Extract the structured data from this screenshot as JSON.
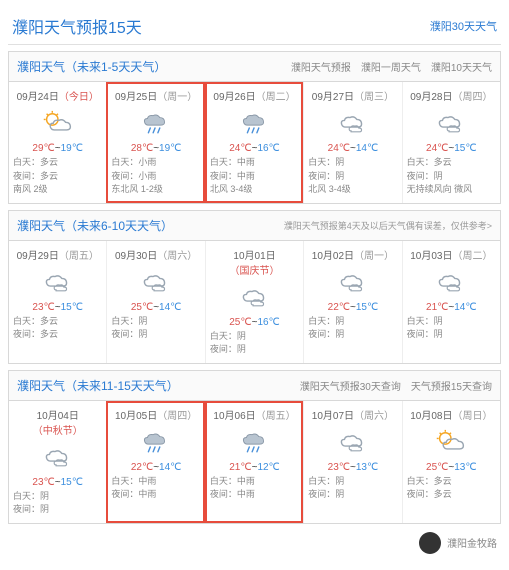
{
  "header": {
    "title": "濮阳天气预报15天",
    "link30": "濮阳30天天气"
  },
  "colors": {
    "hi": "#d9534f",
    "lo": "#3b8ede",
    "highlight": "#e74c3c",
    "link": "#2a7ad2"
  },
  "footer": {
    "text": "濮阳金牧路"
  },
  "sections": [
    {
      "title": "濮阳天气（未来1-5天天气）",
      "links": [
        "濮阳天气预报",
        "濮阳一周天气",
        "濮阳10天天气"
      ],
      "note": "",
      "days": [
        {
          "date": "09月24日",
          "dow": "（今日）",
          "today": true,
          "icon": "partly",
          "hi": "29℃",
          "lo": "19℃",
          "day": "白天：多云",
          "night": "夜间：多云",
          "wind": "南风 2级",
          "highlight": false
        },
        {
          "date": "09月25日",
          "dow": "（周一）",
          "icon": "rain",
          "hi": "28℃",
          "lo": "19℃",
          "day": "白天：小雨",
          "night": "夜间：小雨",
          "wind": "东北风 1-2级",
          "highlight": true
        },
        {
          "date": "09月26日",
          "dow": "（周二）",
          "icon": "rain",
          "hi": "24℃",
          "lo": "16℃",
          "day": "白天：中雨",
          "night": "夜间：中雨",
          "wind": "北风 3-4级",
          "highlight": true
        },
        {
          "date": "09月27日",
          "dow": "（周三）",
          "icon": "cloudy",
          "hi": "24℃",
          "lo": "14℃",
          "day": "白天：阴",
          "night": "夜间：阴",
          "wind": "北风 3-4级",
          "highlight": false
        },
        {
          "date": "09月28日",
          "dow": "（周四）",
          "icon": "cloudy",
          "hi": "24℃",
          "lo": "15℃",
          "day": "白天：多云",
          "night": "夜间：阴",
          "wind": "无持续风向 微风",
          "highlight": false
        }
      ]
    },
    {
      "title": "濮阳天气（未来6-10天天气）",
      "links": [],
      "note": "濮阳天气预报第4天及以后天气偶有误差，仅供参考>",
      "days": [
        {
          "date": "09月29日",
          "dow": "（周五）",
          "icon": "cloudy",
          "hi": "23℃",
          "lo": "15℃",
          "day": "白天：多云",
          "night": "夜间：多云",
          "wind": "",
          "highlight": false
        },
        {
          "date": "09月30日",
          "dow": "（周六）",
          "icon": "cloudy",
          "hi": "25℃",
          "lo": "14℃",
          "day": "白天：阴",
          "night": "夜间：阴",
          "wind": "",
          "highlight": false
        },
        {
          "date": "10月01日",
          "dow": "（国庆节）",
          "holiday": true,
          "icon": "cloudy",
          "hi": "25℃",
          "lo": "16℃",
          "day": "白天：阴",
          "night": "夜间：阴",
          "wind": "",
          "highlight": false
        },
        {
          "date": "10月02日",
          "dow": "（周一）",
          "icon": "cloudy",
          "hi": "22℃",
          "lo": "15℃",
          "day": "白天：阴",
          "night": "夜间：阴",
          "wind": "",
          "highlight": false
        },
        {
          "date": "10月03日",
          "dow": "（周二）",
          "icon": "cloudy",
          "hi": "21℃",
          "lo": "14℃",
          "day": "白天：阴",
          "night": "夜间：阴",
          "wind": "",
          "highlight": false
        }
      ]
    },
    {
      "title": "濮阳天气（未来11-15天天气）",
      "links": [
        "濮阳天气预报30天查询",
        "天气预报15天查询"
      ],
      "note": "",
      "days": [
        {
          "date": "10月04日",
          "dow": "（中秋节）",
          "holiday": true,
          "icon": "cloudy",
          "hi": "23℃",
          "lo": "15℃",
          "day": "白天：阴",
          "night": "夜间：阴",
          "wind": "",
          "highlight": false
        },
        {
          "date": "10月05日",
          "dow": "（周四）",
          "icon": "rain",
          "hi": "22℃",
          "lo": "14℃",
          "day": "白天：中雨",
          "night": "夜间：中雨",
          "wind": "",
          "highlight": true
        },
        {
          "date": "10月06日",
          "dow": "（周五）",
          "icon": "rain",
          "hi": "21℃",
          "lo": "12℃",
          "day": "白天：中雨",
          "night": "夜间：中雨",
          "wind": "",
          "highlight": true
        },
        {
          "date": "10月07日",
          "dow": "（周六）",
          "icon": "cloudy",
          "hi": "23℃",
          "lo": "13℃",
          "day": "白天：阴",
          "night": "夜间：阴",
          "wind": "",
          "highlight": false
        },
        {
          "date": "10月08日",
          "dow": "（周日）",
          "icon": "partly",
          "hi": "25℃",
          "lo": "13℃",
          "day": "白天：多云",
          "night": "夜间：多云",
          "wind": "",
          "highlight": false
        }
      ]
    }
  ]
}
